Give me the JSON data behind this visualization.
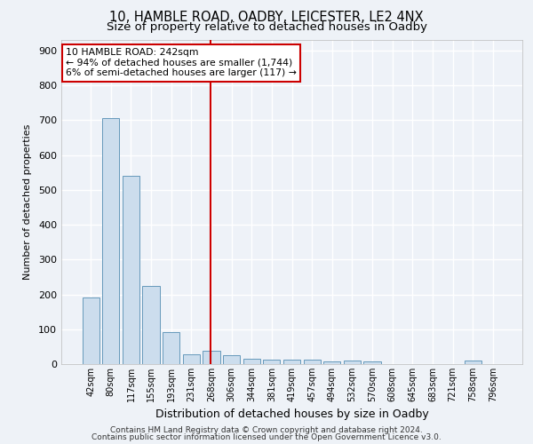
{
  "title1": "10, HAMBLE ROAD, OADBY, LEICESTER, LE2 4NX",
  "title2": "Size of property relative to detached houses in Oadby",
  "xlabel": "Distribution of detached houses by size in Oadby",
  "ylabel": "Number of detached properties",
  "categories": [
    "42sqm",
    "80sqm",
    "117sqm",
    "155sqm",
    "193sqm",
    "231sqm",
    "268sqm",
    "306sqm",
    "344sqm",
    "381sqm",
    "419sqm",
    "457sqm",
    "494sqm",
    "532sqm",
    "570sqm",
    "608sqm",
    "645sqm",
    "683sqm",
    "721sqm",
    "758sqm",
    "796sqm"
  ],
  "values": [
    190,
    706,
    540,
    225,
    92,
    27,
    38,
    25,
    15,
    12,
    12,
    12,
    8,
    10,
    8,
    0,
    0,
    0,
    0,
    10,
    0
  ],
  "bar_color": "#ccdded",
  "bar_edge_color": "#6699bb",
  "vline_x_index": 5.97,
  "vline_color": "#cc0000",
  "annotation_text": "10 HAMBLE ROAD: 242sqm\n← 94% of detached houses are smaller (1,744)\n6% of semi-detached houses are larger (117) →",
  "annotation_box_color": "#cc0000",
  "ylim": [
    0,
    930
  ],
  "yticks": [
    0,
    100,
    200,
    300,
    400,
    500,
    600,
    700,
    800,
    900
  ],
  "footer1": "Contains HM Land Registry data © Crown copyright and database right 2024.",
  "footer2": "Contains public sector information licensed under the Open Government Licence v3.0.",
  "bg_color": "#eef2f7",
  "plot_bg_color": "#eef2f8",
  "grid_color": "#ffffff",
  "title1_fontsize": 10.5,
  "title2_fontsize": 9.5,
  "footer_fontsize": 6.5
}
